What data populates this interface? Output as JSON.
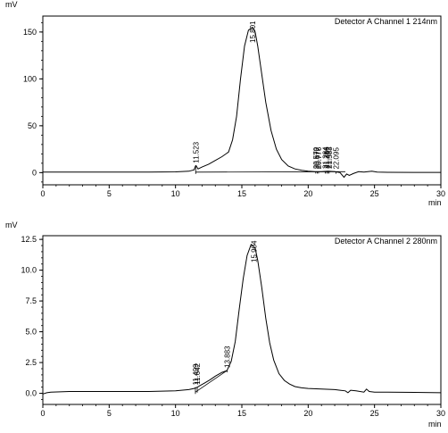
{
  "chart_data": [
    {
      "type": "line",
      "title": "Detector A Channel 1 214nm",
      "ylabel": "mV",
      "xlabel": "min",
      "xlim": [
        0,
        30
      ],
      "ylim": [
        -13,
        167
      ],
      "xticks": [
        0,
        5,
        10,
        15,
        20,
        25,
        30
      ],
      "yticks": [
        0,
        50,
        100,
        150
      ],
      "grid": false,
      "series": [
        {
          "color": "#000000",
          "x": [
            0,
            2,
            4,
            6,
            8,
            10,
            11.0,
            11.4,
            11.5,
            11.55,
            11.7,
            12.0,
            12.5,
            13.0,
            13.5,
            14.0,
            14.3,
            14.6,
            14.9,
            15.2,
            15.5,
            15.8,
            16.0,
            16.2,
            16.5,
            16.8,
            17.2,
            17.6,
            18.0,
            18.5,
            19.0,
            19.5,
            20.0,
            20.5,
            21.0,
            21.5,
            22.0,
            22.4,
            22.7,
            22.9,
            23.1,
            23.4,
            23.8,
            24.2,
            24.5,
            24.8,
            25.2,
            26,
            28,
            30
          ],
          "y": [
            0.5,
            0.5,
            0.5,
            0.6,
            0.6,
            0.8,
            1.5,
            3,
            7,
            7.5,
            4,
            6,
            9,
            13,
            17,
            22,
            35,
            60,
            100,
            135,
            152,
            155,
            150,
            135,
            105,
            75,
            45,
            25,
            14,
            7,
            4,
            2.5,
            1.5,
            1,
            1,
            1.5,
            1,
            0,
            -5,
            -1.5,
            -3,
            -1,
            1,
            0.5,
            1,
            1.5,
            0.5,
            0.3,
            0.2,
            0.2
          ]
        }
      ],
      "baseline": {
        "x": [
          11.5,
          22.8
        ],
        "y": [
          0.5,
          1.0
        ]
      },
      "peak_markers": [
        11.52,
        20.57,
        20.68,
        20.78,
        21.28,
        21.39,
        21.49,
        21.58,
        22.1
      ],
      "peak_labels": [
        {
          "x": 11.523,
          "text": "11.523"
        },
        {
          "x": 15.801,
          "text": "15.801"
        },
        {
          "x": 20.57,
          "text": "20.570"
        },
        {
          "x": 20.677,
          "text": "20.677"
        },
        {
          "x": 20.776,
          "text": "20.776"
        },
        {
          "x": 21.284,
          "text": "21.284"
        },
        {
          "x": 21.386,
          "text": "21.386"
        },
        {
          "x": 21.492,
          "text": "21.492"
        },
        {
          "x": 21.583,
          "text": "21.583"
        },
        {
          "x": 22.095,
          "text": "22.095"
        }
      ]
    },
    {
      "type": "line",
      "title": "Detector A Channel 2 280nm",
      "ylabel": "mV",
      "xlabel": "min",
      "xlim": [
        0,
        30
      ],
      "ylim": [
        -0.9,
        12.8
      ],
      "xticks": [
        0,
        5,
        10,
        15,
        20,
        25,
        30
      ],
      "yticks": [
        0.0,
        2.5,
        5.0,
        7.5,
        10.0,
        12.5
      ],
      "grid": false,
      "series": [
        {
          "color": "#000000",
          "x": [
            0,
            0.3,
            0.6,
            2,
            4,
            6,
            8,
            10,
            11.0,
            11.4,
            11.5,
            11.65,
            11.8,
            12.2,
            12.6,
            13.0,
            13.5,
            13.88,
            14.2,
            14.5,
            14.8,
            15.1,
            15.4,
            15.7,
            16.0,
            16.2,
            16.5,
            16.8,
            17.1,
            17.4,
            17.8,
            18.2,
            18.6,
            19.0,
            19.5,
            20.0,
            21.0,
            22.0,
            22.8,
            23.0,
            23.2,
            23.6,
            24.2,
            24.4,
            24.6,
            25.0,
            26,
            28,
            30
          ],
          "y": [
            -0.05,
            0.05,
            0.1,
            0.15,
            0.15,
            0.15,
            0.15,
            0.2,
            0.3,
            0.4,
            0.45,
            0.5,
            0.6,
            0.85,
            1.1,
            1.4,
            1.7,
            1.85,
            2.6,
            4.2,
            6.8,
            9.3,
            11.2,
            12.1,
            11.8,
            10.8,
            8.6,
            6.1,
            4.1,
            2.7,
            1.6,
            1.05,
            0.75,
            0.55,
            0.45,
            0.4,
            0.35,
            0.3,
            0.2,
            0.05,
            0.25,
            0.2,
            0.1,
            0.35,
            0.15,
            0.1,
            0.1,
            0.08,
            0.05
          ]
        }
      ],
      "baseline": {
        "x": [
          11.5,
          13.88
        ],
        "y": [
          0.1,
          1.85
        ]
      },
      "peak_markers": [
        11.5,
        11.64,
        13.88
      ],
      "peak_labels": [
        {
          "x": 11.499,
          "text": "11.499"
        },
        {
          "x": 11.642,
          "text": "11.642"
        },
        {
          "x": 13.883,
          "text": "13.883"
        },
        {
          "x": 15.904,
          "text": "15.904"
        }
      ]
    }
  ]
}
